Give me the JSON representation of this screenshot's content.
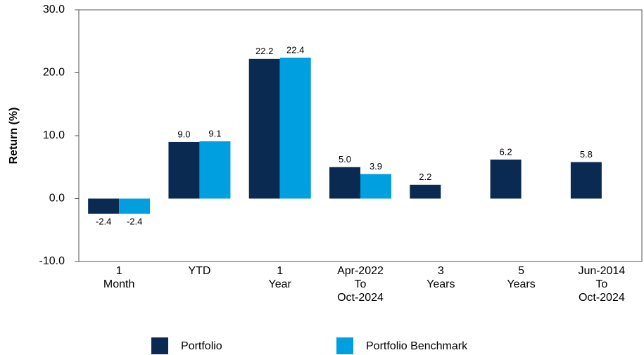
{
  "chart_data": {
    "type": "bar",
    "y_label": "Return (%)",
    "categories": [
      [
        "1",
        "Month"
      ],
      [
        "YTD"
      ],
      [
        "1",
        "Year"
      ],
      [
        "Apr-2022",
        "To",
        "Oct-2024"
      ],
      [
        "3",
        "Years"
      ],
      [
        "5",
        "Years"
      ],
      [
        "Jun-2014",
        "To",
        "Oct-2024"
      ]
    ],
    "series": [
      {
        "name": "Portfolio",
        "color": "#0b2a52",
        "values": [
          -2.4,
          9.0,
          22.2,
          5.0,
          2.2,
          6.2,
          5.8
        ],
        "value_labels": [
          "-2.4",
          "9.0",
          "22.2",
          "5.0",
          "2.2",
          "6.2",
          "5.8"
        ]
      },
      {
        "name": "Portfolio Benchmark",
        "color": "#009fdf",
        "values": [
          -2.4,
          9.1,
          22.4,
          3.9,
          null,
          null,
          null
        ],
        "value_labels": [
          "-2.4",
          "9.1",
          "22.4",
          "3.9",
          null,
          null,
          null
        ]
      }
    ],
    "ylim": [
      -10,
      30
    ],
    "yticks": [
      {
        "value": -10,
        "label": "-10.0"
      },
      {
        "value": 0,
        "label": "0.0"
      },
      {
        "value": 10,
        "label": "10.0"
      },
      {
        "value": 20,
        "label": "20.0"
      },
      {
        "value": 30,
        "label": "30.0"
      }
    ]
  }
}
